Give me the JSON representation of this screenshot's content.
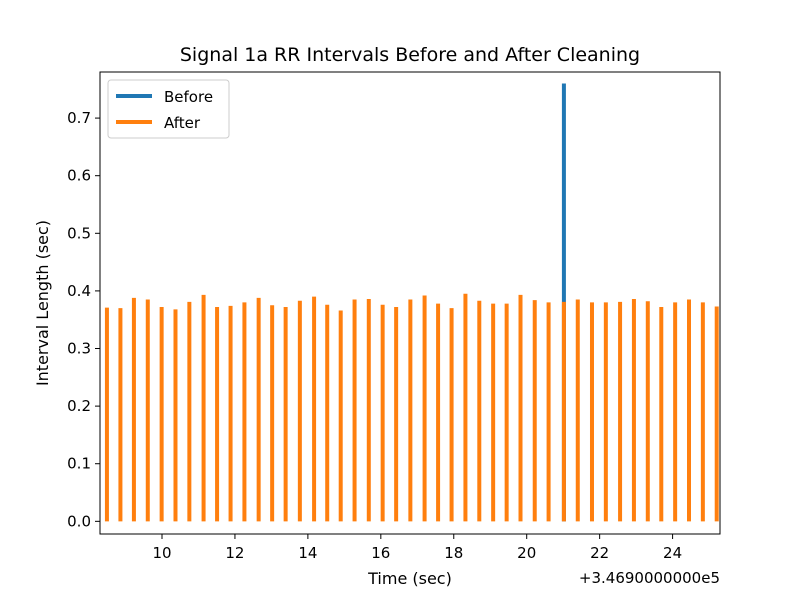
{
  "chart_data": {
    "type": "bar",
    "title": "Signal 1a RR Intervals Before and After Cleaning",
    "xlabel": "Time (sec)",
    "ylabel": "Interval Length (sec)",
    "x_offset_label": "+3.4690000000e5",
    "xlim": [
      8.3,
      25.3
    ],
    "ylim": [
      -0.022,
      0.78
    ],
    "xticks": [
      10,
      12,
      14,
      16,
      18,
      20,
      22,
      24
    ],
    "xtick_labels": [
      "10",
      "12",
      "14",
      "16",
      "18",
      "20",
      "22",
      "24"
    ],
    "yticks": [
      0.0,
      0.1,
      0.2,
      0.3,
      0.4,
      0.5,
      0.6,
      0.7
    ],
    "ytick_labels": [
      "0.0",
      "0.1",
      "0.2",
      "0.3",
      "0.4",
      "0.5",
      "0.6",
      "0.7"
    ],
    "grid": false,
    "legend_position": "top-left",
    "series": [
      {
        "name": "Before",
        "color": "#1f77b4",
        "x": [
          21.02
        ],
        "values": [
          0.76
        ]
      },
      {
        "name": "After",
        "color": "#ff7f0e",
        "x": [
          8.49,
          8.86,
          9.23,
          9.61,
          9.99,
          10.37,
          10.75,
          11.14,
          11.51,
          11.88,
          12.26,
          12.65,
          13.02,
          13.39,
          13.78,
          14.17,
          14.53,
          14.9,
          15.28,
          15.67,
          16.05,
          16.42,
          16.81,
          17.2,
          17.57,
          17.94,
          18.32,
          18.7,
          19.08,
          19.45,
          19.83,
          20.22,
          20.6,
          21.02,
          21.4,
          21.79,
          22.17,
          22.56,
          22.94,
          23.32,
          23.69,
          24.07,
          24.45,
          24.83,
          25.21
        ],
        "values": [
          0.371,
          0.37,
          0.388,
          0.385,
          0.372,
          0.368,
          0.381,
          0.393,
          0.372,
          0.374,
          0.38,
          0.388,
          0.375,
          0.372,
          0.383,
          0.39,
          0.376,
          0.366,
          0.385,
          0.386,
          0.376,
          0.372,
          0.385,
          0.392,
          0.378,
          0.37,
          0.395,
          0.383,
          0.378,
          0.378,
          0.393,
          0.384,
          0.38,
          0.381,
          0.385,
          0.38,
          0.38,
          0.381,
          0.386,
          0.382,
          0.372,
          0.38,
          0.385,
          0.38,
          0.373
        ]
      }
    ]
  }
}
